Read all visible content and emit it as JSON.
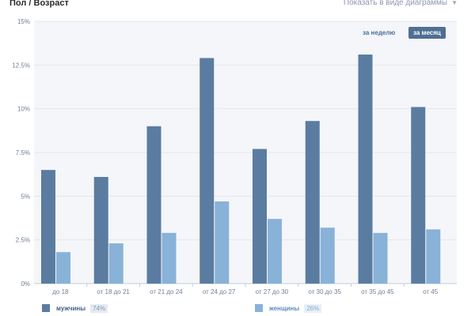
{
  "header": {
    "title": "Пол / Возраст",
    "view_toggle": "Показать в виде диаграммы"
  },
  "period_tabs": {
    "week": "за неделю",
    "month": "за месяц",
    "active": "month"
  },
  "legend": {
    "men": {
      "label": "мужчины",
      "percent": "74%",
      "color": "#5b7ca1"
    },
    "women": {
      "label": "женщины",
      "percent": "26%",
      "color": "#89b2d8"
    }
  },
  "colors": {
    "plot_background": "#f4f6f9",
    "grid": "#e2e7ee",
    "tick_text": "#6f7f91"
  },
  "chart_data": {
    "type": "bar",
    "categories": [
      "до 18",
      "от 18 до 21",
      "от 21 до 24",
      "от 24 до 27",
      "от 27 до 30",
      "от 30 до 35",
      "от 35 до 45",
      "от 45"
    ],
    "series": [
      {
        "name": "мужчины",
        "values": [
          6.5,
          6.1,
          9.0,
          12.9,
          7.7,
          9.3,
          13.1,
          10.1
        ]
      },
      {
        "name": "женщины",
        "values": [
          1.8,
          2.3,
          2.9,
          4.7,
          3.7,
          3.2,
          2.9,
          3.1
        ]
      }
    ],
    "yticks": [
      "0%",
      "2.5%",
      "5%",
      "7.5%",
      "10%",
      "12.5%",
      "15%"
    ],
    "ylim": [
      0,
      15
    ],
    "grid": true,
    "legend_position": "bottom"
  }
}
